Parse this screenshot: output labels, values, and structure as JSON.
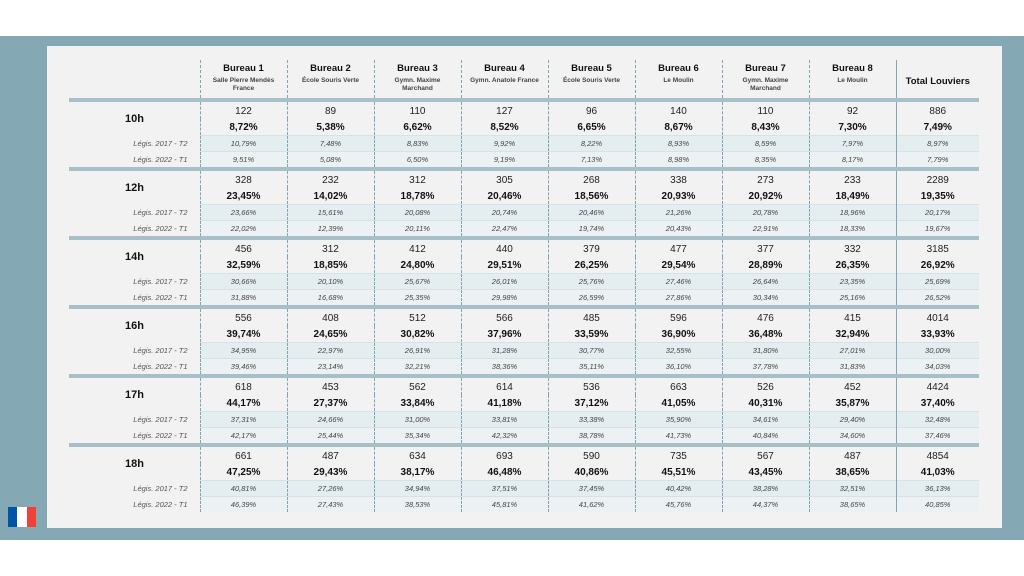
{
  "colors": {
    "frame": "#84a9b4",
    "sheet": "#f2f2f2",
    "separator": "#a7bfc6",
    "flag_blue": "#0055a4",
    "flag_white": "#ffffff",
    "flag_red": "#ef4135"
  },
  "flag_icon": "france-flag-icon",
  "bureaux": [
    {
      "name": "Bureau 1",
      "location": "Salle Pierre Mendès France"
    },
    {
      "name": "Bureau 2",
      "location": "École Souris Verte"
    },
    {
      "name": "Bureau 3",
      "location": "Gymn. Maxime Marchand"
    },
    {
      "name": "Bureau 4",
      "location": "Gymn. Anatole France"
    },
    {
      "name": "Bureau 5",
      "location": "École Souris Verte"
    },
    {
      "name": "Bureau 6",
      "location": "Le Moulin"
    },
    {
      "name": "Bureau 7",
      "location": "Gymn. Maxime Marchand"
    },
    {
      "name": "Bureau 8",
      "location": "Le Moulin"
    }
  ],
  "total_label": "Total Louviers",
  "ref_labels": [
    "Légis. 2017 - T2",
    "Légis. 2022 - T1"
  ],
  "rows": [
    {
      "hour": "10h",
      "counts": [
        "122",
        "89",
        "110",
        "127",
        "96",
        "140",
        "110",
        "92",
        "886"
      ],
      "pcts": [
        "8,72%",
        "5,38%",
        "6,62%",
        "8,52%",
        "6,65%",
        "8,67%",
        "8,43%",
        "7,30%",
        "7,49%"
      ],
      "legis2017": [
        "10,79%",
        "7,48%",
        "8,83%",
        "9,92%",
        "8,22%",
        "8,93%",
        "8,59%",
        "7,97%",
        "8,97%"
      ],
      "legis2022": [
        "9,51%",
        "5,08%",
        "6,50%",
        "9,19%",
        "7,13%",
        "8,98%",
        "8,35%",
        "8,17%",
        "7,79%"
      ]
    },
    {
      "hour": "12h",
      "counts": [
        "328",
        "232",
        "312",
        "305",
        "268",
        "338",
        "273",
        "233",
        "2289"
      ],
      "pcts": [
        "23,45%",
        "14,02%",
        "18,78%",
        "20,46%",
        "18,56%",
        "20,93%",
        "20,92%",
        "18,49%",
        "19,35%"
      ],
      "legis2017": [
        "23,66%",
        "15,61%",
        "20,08%",
        "20,74%",
        "20,46%",
        "21,26%",
        "20,78%",
        "18,96%",
        "20,17%"
      ],
      "legis2022": [
        "22,02%",
        "12,39%",
        "20,11%",
        "22,47%",
        "19,74%",
        "20,43%",
        "22,91%",
        "18,33%",
        "19,67%"
      ]
    },
    {
      "hour": "14h",
      "counts": [
        "456",
        "312",
        "412",
        "440",
        "379",
        "477",
        "377",
        "332",
        "3185"
      ],
      "pcts": [
        "32,59%",
        "18,85%",
        "24,80%",
        "29,51%",
        "26,25%",
        "29,54%",
        "28,89%",
        "26,35%",
        "26,92%"
      ],
      "legis2017": [
        "30,66%",
        "20,10%",
        "25,67%",
        "26,01%",
        "25,76%",
        "27,46%",
        "26,64%",
        "23,35%",
        "25,69%"
      ],
      "legis2022": [
        "31,88%",
        "16,68%",
        "25,35%",
        "29,98%",
        "26,59%",
        "27,86%",
        "30,34%",
        "25,16%",
        "26,52%"
      ]
    },
    {
      "hour": "16h",
      "counts": [
        "556",
        "408",
        "512",
        "566",
        "485",
        "596",
        "476",
        "415",
        "4014"
      ],
      "pcts": [
        "39,74%",
        "24,65%",
        "30,82%",
        "37,96%",
        "33,59%",
        "36,90%",
        "36,48%",
        "32,94%",
        "33,93%"
      ],
      "legis2017": [
        "34,95%",
        "22,97%",
        "26,91%",
        "31,28%",
        "30,77%",
        "32,55%",
        "31,80%",
        "27,01%",
        "30,00%"
      ],
      "legis2022": [
        "39,46%",
        "23,14%",
        "32,21%",
        "38,36%",
        "35,11%",
        "36,10%",
        "37,78%",
        "31,83%",
        "34,03%"
      ]
    },
    {
      "hour": "17h",
      "counts": [
        "618",
        "453",
        "562",
        "614",
        "536",
        "663",
        "526",
        "452",
        "4424"
      ],
      "pcts": [
        "44,17%",
        "27,37%",
        "33,84%",
        "41,18%",
        "37,12%",
        "41,05%",
        "40,31%",
        "35,87%",
        "37,40%"
      ],
      "legis2017": [
        "37,31%",
        "24,66%",
        "31,00%",
        "33,81%",
        "33,38%",
        "35,90%",
        "34,61%",
        "29,40%",
        "32,48%"
      ],
      "legis2022": [
        "42,17%",
        "25,44%",
        "35,34%",
        "42,32%",
        "38,78%",
        "41,73%",
        "40,84%",
        "34,60%",
        "37,46%"
      ]
    },
    {
      "hour": "18h",
      "counts": [
        "661",
        "487",
        "634",
        "693",
        "590",
        "735",
        "567",
        "487",
        "4854"
      ],
      "pcts": [
        "47,25%",
        "29,43%",
        "38,17%",
        "46,48%",
        "40,86%",
        "45,51%",
        "43,45%",
        "38,65%",
        "41,03%"
      ],
      "legis2017": [
        "40,81%",
        "27,26%",
        "34,94%",
        "37,51%",
        "37,45%",
        "40,42%",
        "38,28%",
        "32,51%",
        "36,13%"
      ],
      "legis2022": [
        "46,39%",
        "27,43%",
        "38,53%",
        "45,81%",
        "41,62%",
        "45,76%",
        "44,37%",
        "38,65%",
        "40,85%"
      ]
    }
  ]
}
